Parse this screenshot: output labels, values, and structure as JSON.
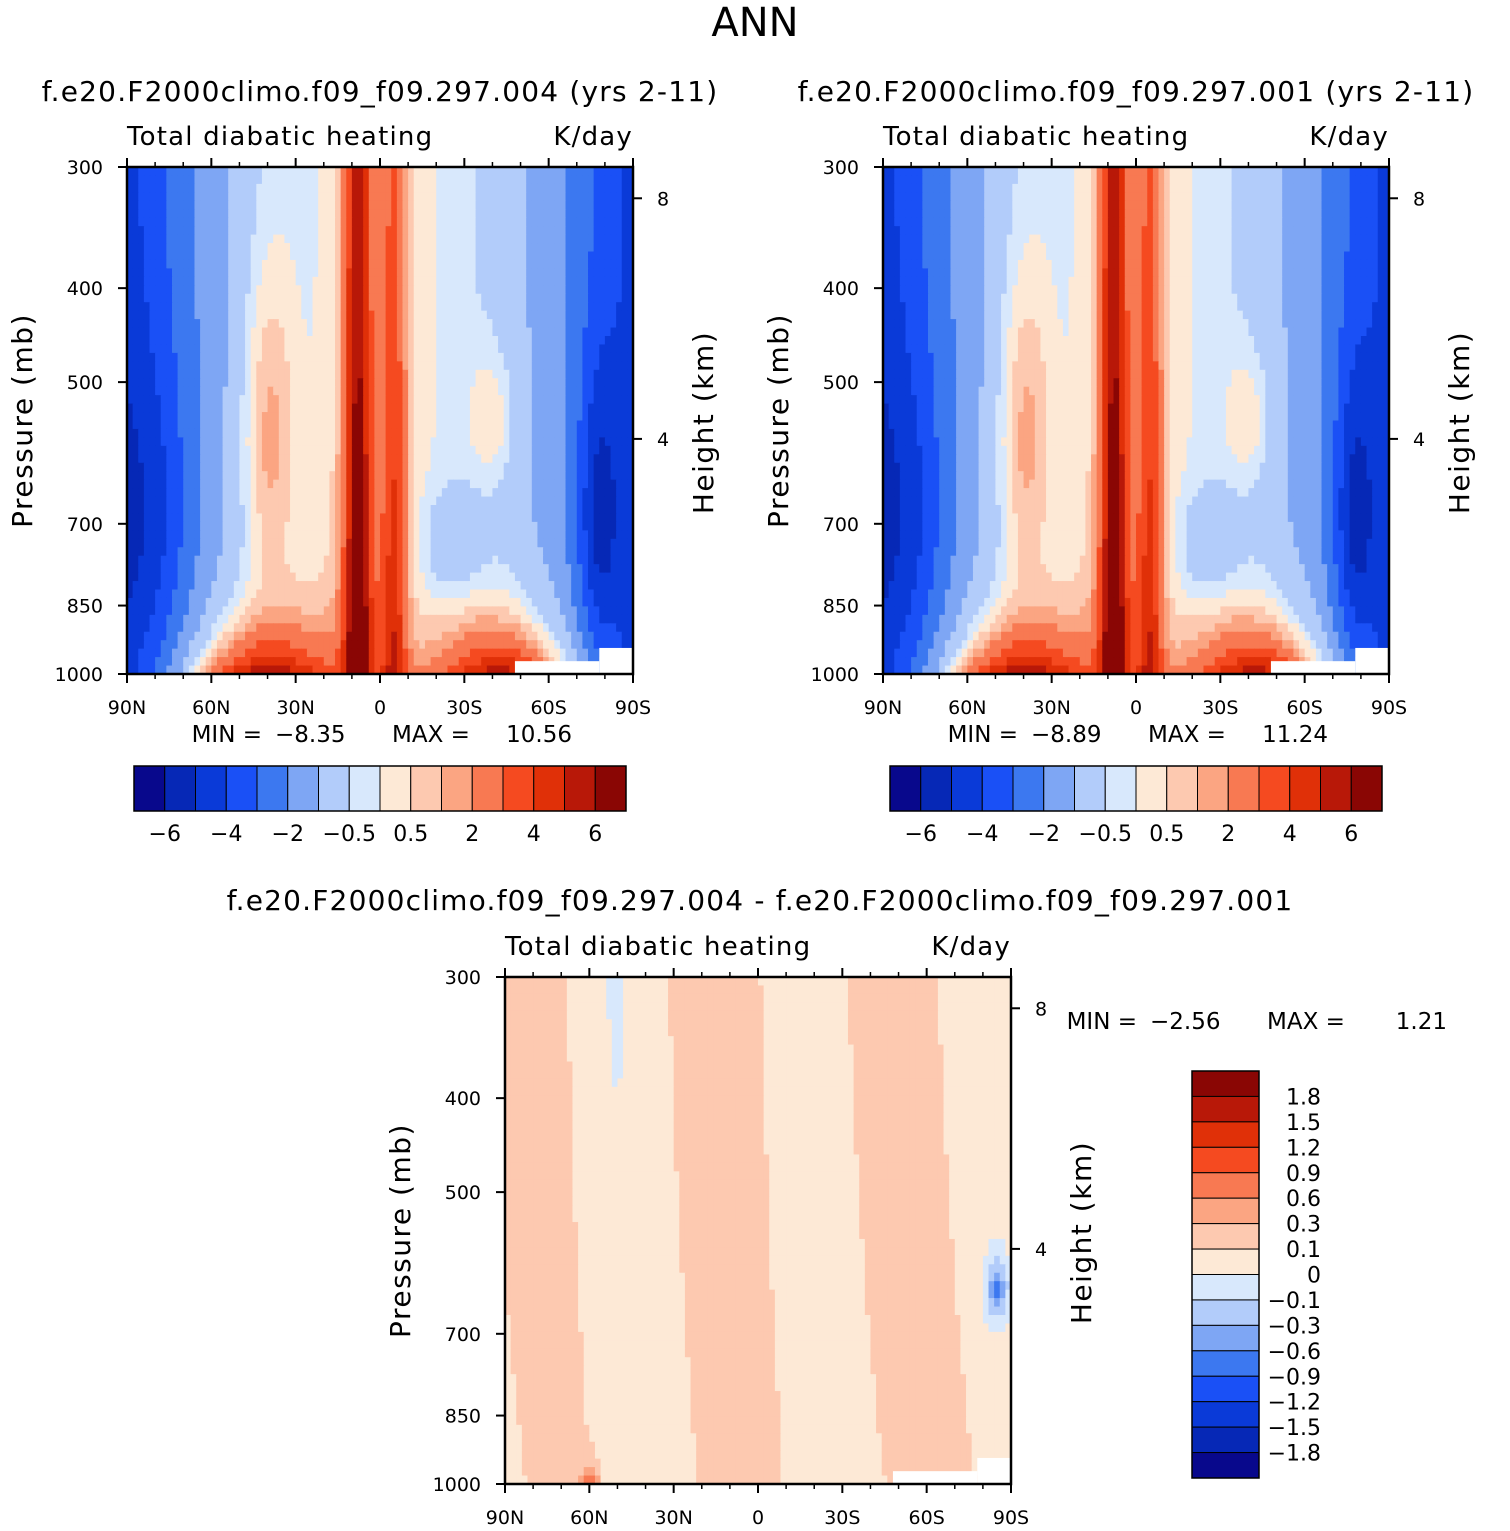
{
  "figure": {
    "main_title": "ANN"
  },
  "colors": {
    "panel_scale": [
      "#08088c",
      "#0628b6",
      "#0a3ad8",
      "#1a50f6",
      "#3c78f0",
      "#7ea6f4",
      "#b2ccfa",
      "#d8e8fc",
      "#fde9d6",
      "#fdc9b0",
      "#fba582",
      "#f87952",
      "#f54a20",
      "#e03008",
      "#b81808",
      "#8a0604"
    ],
    "diff_scale": [
      "#08088c",
      "#0628b6",
      "#0a3ad8",
      "#1a50f6",
      "#3c78f0",
      "#7ea6f4",
      "#b2ccfa",
      "#d8e8fc",
      "#fde9d6",
      "#fdc9b0",
      "#fba582",
      "#f87952",
      "#f54a20",
      "#e03008",
      "#b81808",
      "#8a0604"
    ]
  },
  "chart_data": [
    {
      "id": "control",
      "type": "heatmap",
      "title": "f.e20.F2000climo.f09_f09.297.004 (yrs 2-11)",
      "subtitle_left": "Total diabatic heating",
      "subtitle_right": "K/day",
      "xlabel": "",
      "ylabel": "Pressure (mb)",
      "y2label": "Height (km)",
      "x_ticks": [
        "90N",
        "60N",
        "30N",
        "0",
        "30S",
        "60S",
        "90S"
      ],
      "y_ticks": [
        "300",
        "400",
        "500",
        "700",
        "850",
        "1000"
      ],
      "y_tick_values": [
        300,
        400,
        500,
        700,
        850,
        1000
      ],
      "y2_ticks": [
        "8",
        "4"
      ],
      "y2_tick_values": [
        8,
        4
      ],
      "min_label": "MIN =",
      "min_value": "-8.35",
      "max_label": "MAX =",
      "max_value": "10.56",
      "colorbar_labels": [
        "−6",
        "−4",
        "−2",
        "−0.5",
        "0.5",
        "2",
        "4",
        "6"
      ],
      "contour_levels": [
        -7,
        -6,
        -5,
        -4,
        -3,
        -2,
        -1,
        -0.5,
        0,
        0.5,
        1,
        2,
        3,
        4,
        5,
        6,
        7
      ]
    },
    {
      "id": "test",
      "type": "heatmap",
      "title": "f.e20.F2000climo.f09_f09.297.001 (yrs 2-11)",
      "subtitle_left": "Total diabatic heating",
      "subtitle_right": "K/day",
      "xlabel": "",
      "ylabel": "Pressure (mb)",
      "y2label": "Height (km)",
      "x_ticks": [
        "90N",
        "60N",
        "30N",
        "0",
        "30S",
        "60S",
        "90S"
      ],
      "y_ticks": [
        "300",
        "400",
        "500",
        "700",
        "850",
        "1000"
      ],
      "y_tick_values": [
        300,
        400,
        500,
        700,
        850,
        1000
      ],
      "y2_ticks": [
        "8",
        "4"
      ],
      "y2_tick_values": [
        8,
        4
      ],
      "min_label": "MIN =",
      "min_value": "-8.89",
      "max_label": "MAX =",
      "max_value": "11.24",
      "colorbar_labels": [
        "−6",
        "−4",
        "−2",
        "−0.5",
        "0.5",
        "2",
        "4",
        "6"
      ],
      "contour_levels": [
        -7,
        -6,
        -5,
        -4,
        -3,
        -2,
        -1,
        -0.5,
        0,
        0.5,
        1,
        2,
        3,
        4,
        5,
        6,
        7
      ]
    },
    {
      "id": "difference",
      "type": "heatmap",
      "title": "f.e20.F2000climo.f09_f09.297.004 - f.e20.F2000climo.f09_f09.297.001",
      "subtitle_left": "Total diabatic heating",
      "subtitle_right": "K/day",
      "xlabel": "",
      "ylabel": "Pressure (mb)",
      "y2label": "Height (km)",
      "x_ticks": [
        "90N",
        "60N",
        "30N",
        "0",
        "30S",
        "60S",
        "90S"
      ],
      "y_ticks": [
        "300",
        "400",
        "500",
        "700",
        "850",
        "1000"
      ],
      "y_tick_values": [
        300,
        400,
        500,
        700,
        850,
        1000
      ],
      "y2_ticks": [
        "8",
        "4"
      ],
      "y2_tick_values": [
        8,
        4
      ],
      "min_label": "MIN =",
      "min_value": "-2.56",
      "max_label": "MAX =",
      "max_value": "1.21",
      "colorbar_labels": [
        "1.8",
        "1.5",
        "1.2",
        "0.9",
        "0.6",
        "0.3",
        "0.1",
        "0",
        "−0.1",
        "−0.3",
        "−0.6",
        "−0.9",
        "−1.2",
        "−1.5",
        "−1.8"
      ],
      "contour_levels": [
        -2.1,
        -1.8,
        -1.5,
        -1.2,
        -0.9,
        -0.6,
        -0.3,
        -0.1,
        0,
        0.1,
        0.3,
        0.6,
        0.9,
        1.2,
        1.5,
        1.8,
        2.1
      ]
    }
  ]
}
